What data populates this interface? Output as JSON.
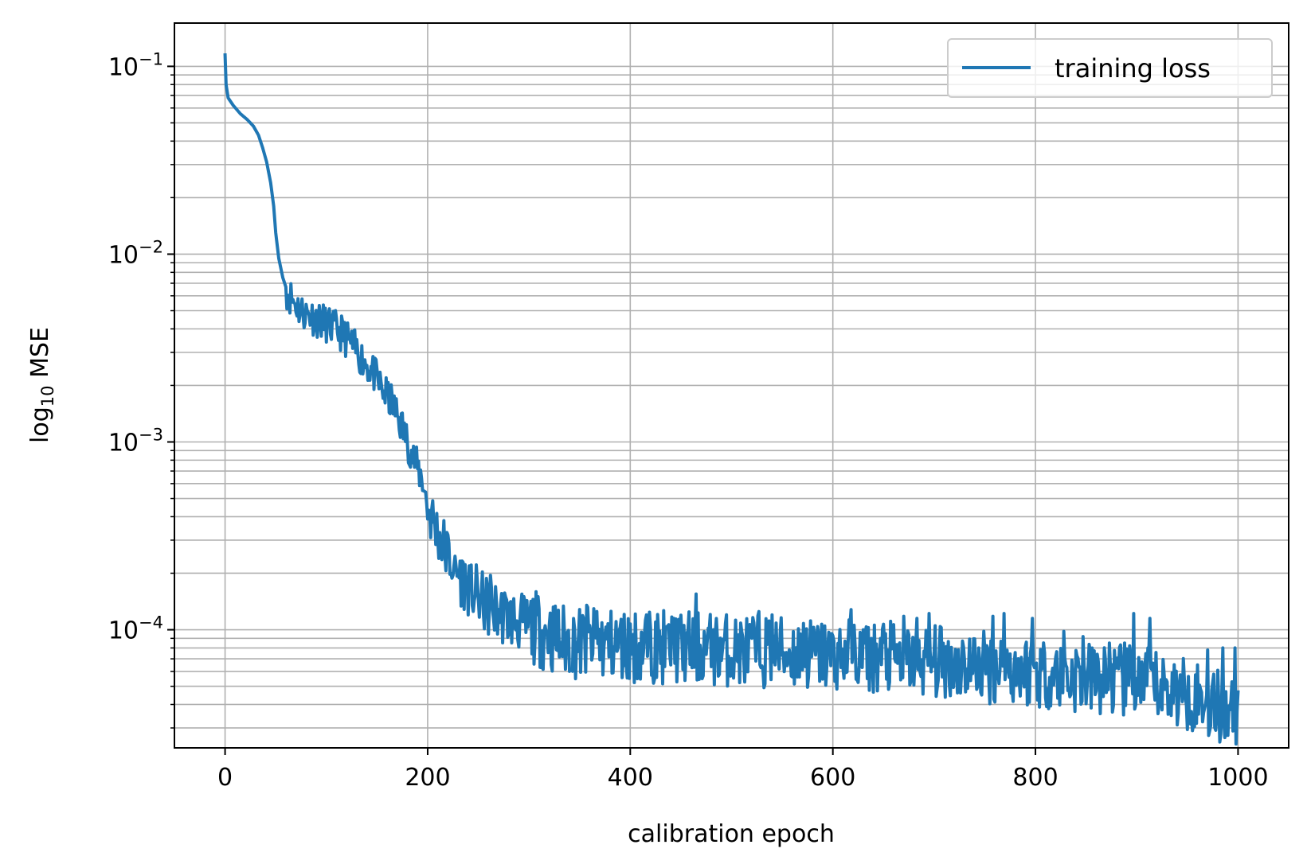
{
  "chart_data": {
    "type": "line",
    "title": "",
    "xlabel": "calibration epoch",
    "ylabel": {
      "prefix": "log",
      "subscript": "10",
      "suffix": " MSE"
    },
    "xscale": "linear",
    "yscale": "log",
    "xlim": [
      -50,
      1050
    ],
    "ylim": [
      2.35e-05,
      0.17
    ],
    "xticks": [
      0,
      200,
      400,
      600,
      800,
      1000
    ],
    "xtick_labels": [
      "0",
      "200",
      "400",
      "600",
      "800",
      "1000"
    ],
    "yticks": [
      {
        "value": 0.1,
        "base": "10",
        "exp": "−1"
      },
      {
        "value": 0.01,
        "base": "10",
        "exp": "−2"
      },
      {
        "value": 0.001,
        "base": "10",
        "exp": "−3"
      },
      {
        "value": 0.0001,
        "base": "10",
        "exp": "−4"
      }
    ],
    "grid": {
      "major": true,
      "minor_y": true
    },
    "legend": {
      "position": "top-right",
      "entries": [
        "training loss"
      ]
    },
    "series": [
      {
        "name": "training loss",
        "color": "#1f77b4",
        "anchors": [
          [
            0,
            0.115
          ],
          [
            1,
            0.08
          ],
          [
            3,
            0.068
          ],
          [
            8,
            0.062
          ],
          [
            15,
            0.056
          ],
          [
            22,
            0.052
          ],
          [
            28,
            0.048
          ],
          [
            33,
            0.043
          ],
          [
            37,
            0.037
          ],
          [
            41,
            0.031
          ],
          [
            45,
            0.024
          ],
          [
            48,
            0.018
          ],
          [
            50,
            0.013
          ],
          [
            53,
            0.0095
          ],
          [
            57,
            0.0075
          ],
          [
            62,
            0.0062
          ],
          [
            68,
            0.0056
          ],
          [
            75,
            0.005
          ],
          [
            85,
            0.0047
          ],
          [
            95,
            0.0044
          ],
          [
            105,
            0.0041
          ],
          [
            115,
            0.0038
          ],
          [
            125,
            0.0033
          ],
          [
            135,
            0.0028
          ],
          [
            145,
            0.0024
          ],
          [
            155,
            0.0019
          ],
          [
            165,
            0.0016
          ],
          [
            175,
            0.0012
          ],
          [
            185,
            0.00085
          ],
          [
            195,
            0.00062
          ],
          [
            200,
            0.00045
          ],
          [
            210,
            0.00033
          ],
          [
            220,
            0.00025
          ],
          [
            230,
            0.0002
          ],
          [
            245,
            0.00016
          ],
          [
            260,
            0.00013
          ],
          [
            275,
            0.00012
          ],
          [
            290,
            0.00011
          ],
          [
            310,
            0.0001
          ],
          [
            330,
            8.8e-05
          ],
          [
            350,
            8.5e-05
          ],
          [
            400,
            8.2e-05
          ],
          [
            450,
            8e-05
          ],
          [
            500,
            7.8e-05
          ],
          [
            550,
            7.6e-05
          ],
          [
            600,
            7.3e-05
          ],
          [
            650,
            7.1e-05
          ],
          [
            700,
            6.8e-05
          ],
          [
            750,
            6.4e-05
          ],
          [
            800,
            6e-05
          ],
          [
            850,
            5.5e-05
          ],
          [
            900,
            5.2e-05
          ],
          [
            950,
            4.6e-05
          ],
          [
            1000,
            3.5e-05
          ]
        ],
        "spikes": [
          [
            190,
            0.00072
          ],
          [
            196,
            0.00055
          ],
          [
            226,
            0.00022
          ],
          [
            242,
            0.00018
          ],
          [
            262,
            0.000195
          ],
          [
            300,
            0.000125
          ],
          [
            320,
            0.000105
          ],
          [
            357,
            0.000135
          ],
          [
            367,
            0.000125
          ],
          [
            416,
            0.00012
          ],
          [
            425,
            0.00011
          ],
          [
            443,
            0.000115
          ],
          [
            465,
            0.000155
          ],
          [
            482,
            0.0001
          ],
          [
            527,
            0.000125
          ],
          [
            540,
            0.00012
          ],
          [
            571,
            0.000108
          ],
          [
            618,
            0.000128
          ],
          [
            630,
            0.0001
          ],
          [
            650,
            0.000107
          ],
          [
            670,
            0.000118
          ],
          [
            683,
            0.000115
          ],
          [
            695,
            0.000122
          ],
          [
            758,
            0.000118
          ],
          [
            769,
            0.000122
          ],
          [
            797,
            0.000115
          ],
          [
            828,
            9.8e-05
          ],
          [
            847,
            9.2e-05
          ],
          [
            873,
            8.5e-05
          ],
          [
            888,
            8.5e-05
          ],
          [
            897,
            0.000122
          ],
          [
            913,
            0.000115
          ],
          [
            970,
            7.8e-05
          ],
          [
            985,
            8e-05
          ],
          [
            997,
            8e-05
          ]
        ],
        "noise": {
          "start_epoch": 60,
          "seed": 11
        }
      }
    ]
  }
}
